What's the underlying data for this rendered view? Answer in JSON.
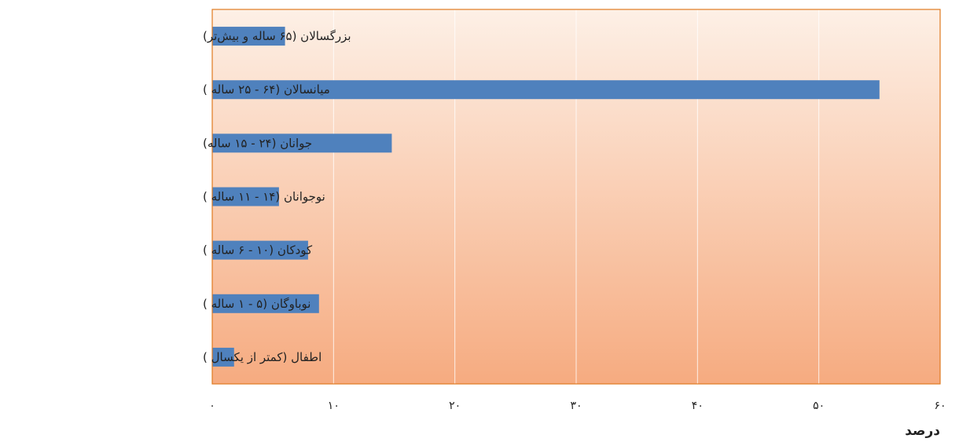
{
  "chart_data": {
    "type": "bar",
    "orientation": "horizontal",
    "categories": [
      "بزرگسالان (۶۵ ساله و بیش‌تر)",
      "میانسالان (۶۴ - ۲۵ ساله )",
      "جوانان (۲۴ - ۱۵ ساله)",
      "نوجوانان  (۱۴ - ۱۱ ساله )",
      "کودکان  (۱۰ - ۶ ساله )",
      "نوباوگان  (۵ - ۱ ساله )",
      "اطفال (کمتر از یکسال )"
    ],
    "values": [
      6,
      55,
      14.8,
      5.5,
      7.9,
      8.8,
      1.8
    ],
    "xlim": [
      0,
      60
    ],
    "x_ticks": [
      0,
      10,
      20,
      30,
      40,
      50,
      60
    ],
    "x_tick_labels": [
      "۰",
      "۱۰",
      "۲۰",
      "۳۰",
      "۴۰",
      "۵۰",
      "۶۰"
    ],
    "xlabel": "درصد",
    "title": "",
    "grid": true,
    "colors": {
      "bar": "#4f81bd",
      "plot_bg_top": "#fdf0e6",
      "plot_bg_bottom": "#f6ab80",
      "plot_border": "#e07a20",
      "gridline": "#ffffff"
    }
  }
}
